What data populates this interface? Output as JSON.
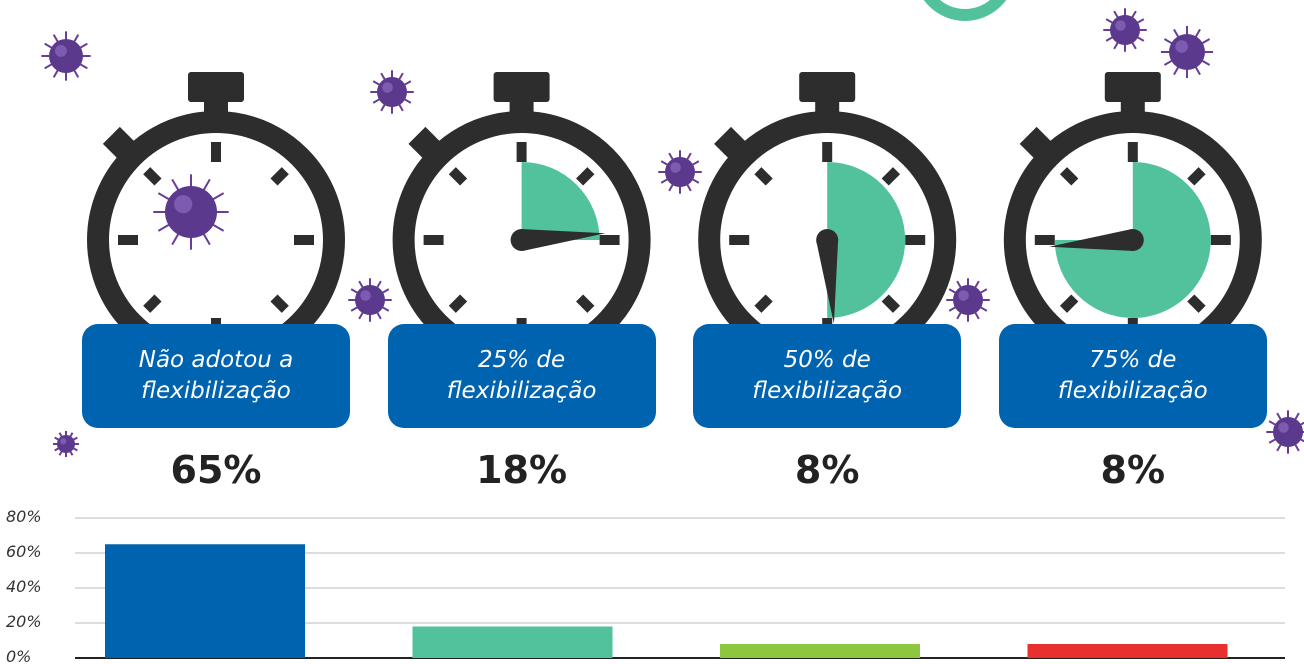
{
  "chart_data": {
    "type": "bar",
    "categories": [
      "Não adotou a flexibilização",
      "25% de flexibilização",
      "50% de flexibilização",
      "75% de flexibilização"
    ],
    "values": [
      65,
      18,
      8,
      8
    ],
    "value_labels": [
      "65%",
      "18%",
      "8%",
      "8%"
    ],
    "colors": [
      "#0063b0",
      "#52c29c",
      "#8dc63f",
      "#e8312f"
    ],
    "ylim": [
      0,
      80
    ],
    "yticks": [
      {
        "value": 0,
        "label": "0%"
      },
      {
        "value": 20,
        "label": "20%"
      },
      {
        "value": 40,
        "label": "40%"
      },
      {
        "value": 60,
        "label": "60%"
      },
      {
        "value": 80,
        "label": "80%"
      }
    ],
    "grid": true
  }
}
